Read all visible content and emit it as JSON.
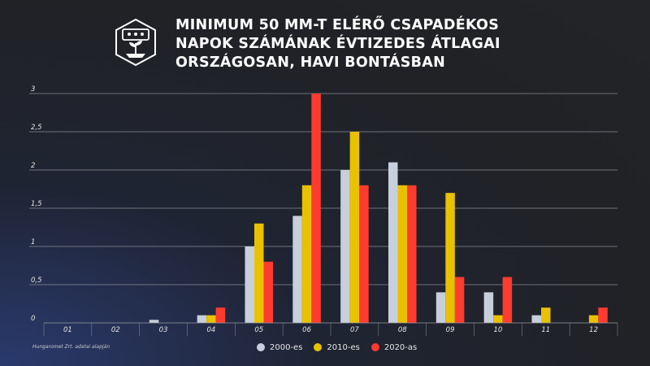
{
  "header": {
    "title": "MINIMUM 50 MM-T ELÉRŐ CSAPADÉKOS\nNAPOK SZÁMÁNAK ÉVTIZEDES ÁTLAGAI\nORSZÁGOSAN, HAVI BONTÁSBAN",
    "logo_icon": "plant-in-hexagon-icon"
  },
  "footer": {
    "source": "Hungaromet Zrt. adatai alapján"
  },
  "chart_data": {
    "type": "bar",
    "title": "MINIMUM 50 MM-T ELÉRŐ CSAPADÉKOS NAPOK SZÁMÁNAK ÉVTIZEDES ÁTLAGAI ORSZÁGOSAN, HAVI BONTÁSBAN",
    "xlabel": "",
    "ylabel": "",
    "categories": [
      "01",
      "02",
      "03",
      "04",
      "05",
      "06",
      "07",
      "08",
      "09",
      "10",
      "11",
      "12"
    ],
    "ylim": [
      0,
      3
    ],
    "yticks": [
      "0",
      "0,5",
      "1",
      "1,5",
      "2",
      "2,5",
      "3"
    ],
    "ytick_values": [
      0,
      0.5,
      1,
      1.5,
      2,
      2.5,
      3
    ],
    "grid": true,
    "legend_position": "bottom-center",
    "series": [
      {
        "name": "2000-es",
        "color": "#c8cfdc",
        "values": [
          0,
          0,
          0.04,
          0.1,
          1.0,
          1.4,
          2.0,
          2.1,
          0.4,
          0.4,
          0.1,
          0
        ]
      },
      {
        "name": "2010-es",
        "color": "#e8c200",
        "values": [
          0,
          0,
          0,
          0.1,
          1.3,
          1.8,
          2.5,
          1.8,
          1.7,
          0.1,
          0.2,
          0.1
        ]
      },
      {
        "name": "2020-as",
        "color": "#ff3b2f",
        "values": [
          0,
          0,
          0,
          0.2,
          0.8,
          3.0,
          1.8,
          1.8,
          0.6,
          0.6,
          0,
          0.2
        ]
      }
    ]
  }
}
